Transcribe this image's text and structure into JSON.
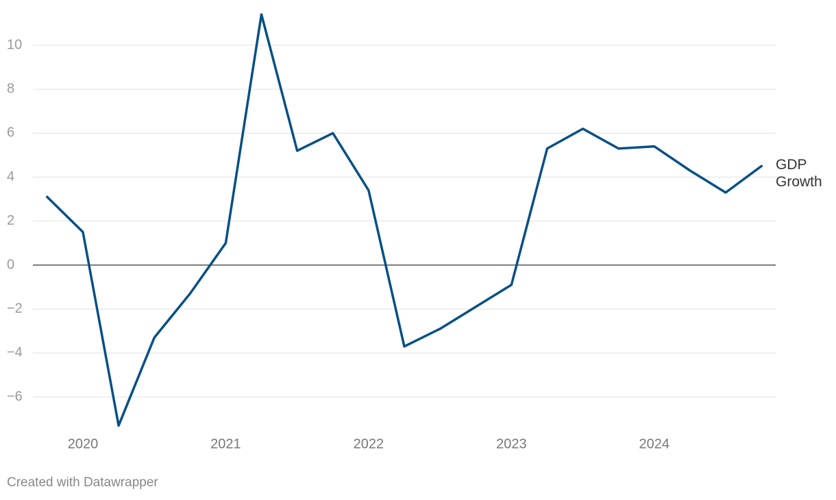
{
  "chart_data": {
    "type": "line",
    "x": [
      2019.75,
      2020,
      2020.25,
      2020.5,
      2020.75,
      2021,
      2021.25,
      2021.5,
      2021.75,
      2022,
      2022.25,
      2022.5,
      2022.75,
      2023,
      2023.25,
      2023.5,
      2023.75,
      2024,
      2024.25,
      2024.5,
      2024.75
    ],
    "series": [
      {
        "name": "GDP Growth",
        "color": "#064f85",
        "values": [
          3.1,
          1.5,
          -7.3,
          -3.3,
          -1.3,
          1.0,
          11.4,
          5.2,
          6.0,
          3.4,
          -3.7,
          -2.9,
          -1.9,
          -0.9,
          5.3,
          6.2,
          5.3,
          5.4,
          4.3,
          3.3,
          4.5
        ]
      }
    ],
    "xlim": [
      2019.65,
      2024.85
    ],
    "xticks": [
      2020,
      2021,
      2022,
      2023,
      2024
    ],
    "ylim": [
      -7.5,
      11.5
    ],
    "yticks": [
      {
        "value": -6,
        "label": "−6"
      },
      {
        "value": -4,
        "label": "−4"
      },
      {
        "value": -2,
        "label": "−2"
      },
      0,
      2,
      4,
      6,
      8,
      10
    ],
    "grid": true,
    "credit": "Created with Datawrapper"
  }
}
